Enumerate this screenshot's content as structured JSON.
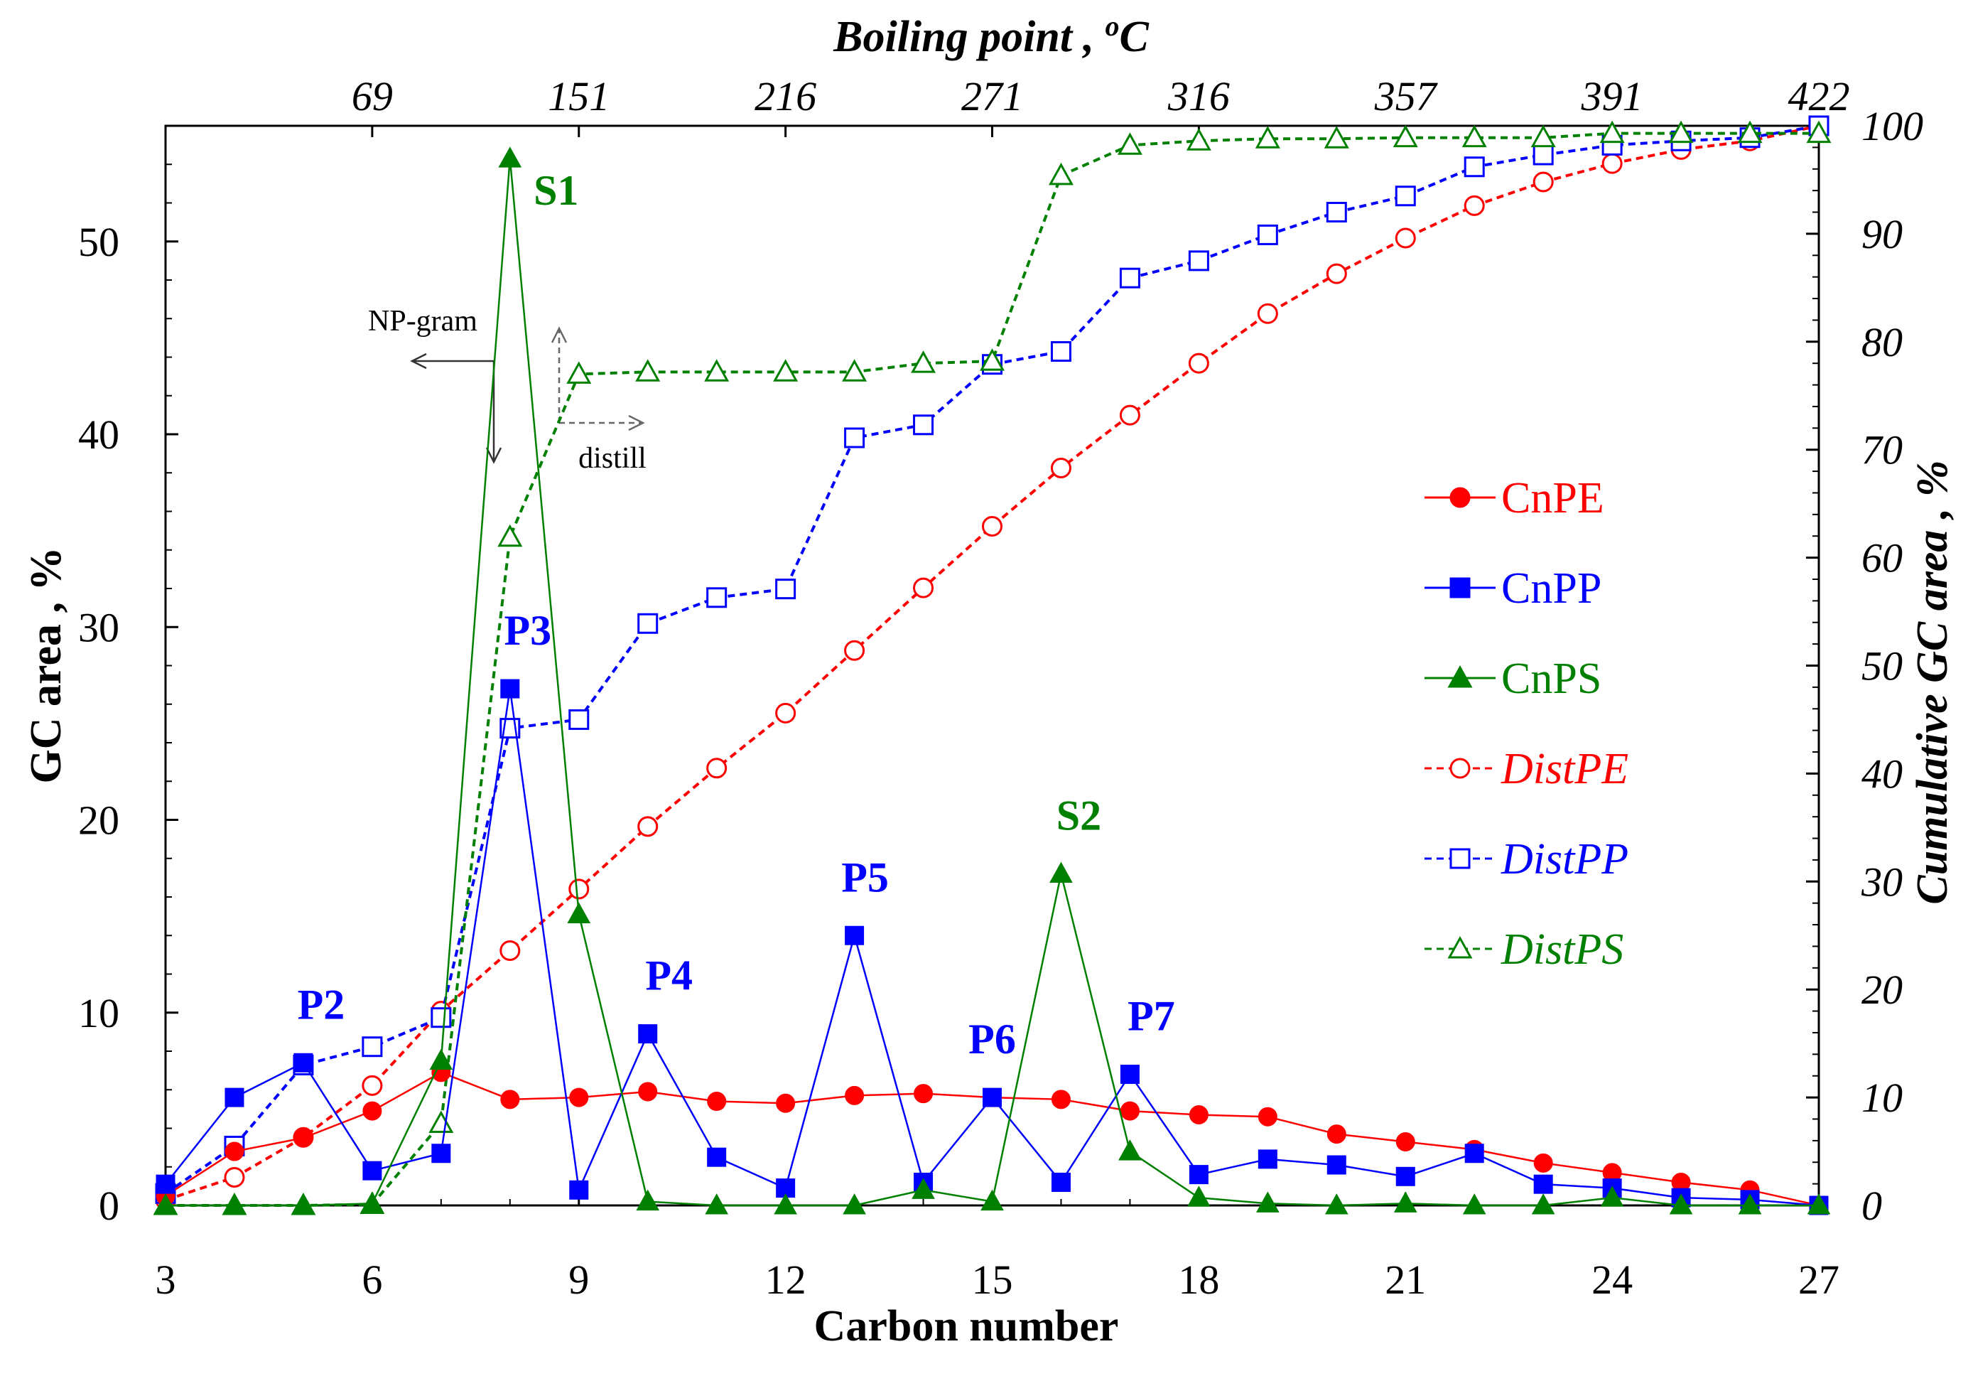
{
  "chart_data": {
    "type": "line",
    "x_axis": {
      "label": "Carbon number",
      "range": [
        3,
        27
      ],
      "ticks": [
        3,
        6,
        9,
        12,
        15,
        18,
        21,
        24,
        27
      ]
    },
    "top_axis": {
      "label": "Boiling point , ",
      "label_sup": "o",
      "label_unit": "C",
      "ticks": [
        {
          "x": 6,
          "label": "69"
        },
        {
          "x": 9,
          "label": "151"
        },
        {
          "x": 12,
          "label": "216"
        },
        {
          "x": 15,
          "label": "271"
        },
        {
          "x": 18,
          "label": "316"
        },
        {
          "x": 21,
          "label": "357"
        },
        {
          "x": 24,
          "label": "391"
        },
        {
          "x": 27,
          "label": "422"
        }
      ]
    },
    "y_left": {
      "label": "GC area , %",
      "range": [
        0,
        56
      ],
      "ticks": [
        0,
        10,
        20,
        30,
        40,
        50
      ]
    },
    "y_right": {
      "label": "Cumulative GC area , %",
      "range": [
        0,
        100
      ],
      "ticks": [
        0,
        10,
        20,
        30,
        40,
        50,
        60,
        70,
        80,
        90,
        100
      ]
    },
    "x": [
      3,
      4,
      5,
      6,
      7,
      8,
      9,
      10,
      11,
      12,
      13,
      14,
      15,
      16,
      17,
      18,
      19,
      20,
      21,
      22,
      23,
      24,
      25,
      26,
      27
    ],
    "series": [
      {
        "name": "CnPE",
        "axis": "left",
        "color": "#ff0000",
        "dash": false,
        "marker": "circle",
        "filled": true,
        "italic": false,
        "values": [
          0.5,
          2.8,
          3.5,
          4.9,
          6.9,
          5.5,
          5.6,
          5.9,
          5.4,
          5.3,
          5.7,
          5.8,
          5.6,
          5.5,
          4.9,
          4.7,
          4.6,
          3.7,
          3.3,
          2.9,
          2.2,
          1.7,
          1.2,
          0.8,
          0.0
        ]
      },
      {
        "name": "CnPP",
        "axis": "left",
        "color": "#0000ff",
        "dash": false,
        "marker": "square",
        "filled": true,
        "italic": false,
        "values": [
          1.1,
          5.6,
          7.4,
          1.8,
          2.7,
          26.8,
          0.8,
          8.9,
          2.5,
          0.9,
          14.0,
          1.2,
          5.6,
          1.2,
          6.8,
          1.6,
          2.4,
          2.1,
          1.5,
          2.7,
          1.1,
          0.9,
          0.4,
          0.3,
          0.0
        ]
      },
      {
        "name": "CnPS",
        "axis": "left",
        "color": "#008000",
        "dash": false,
        "marker": "triangle",
        "filled": true,
        "italic": false,
        "values": [
          0.0,
          0.0,
          0.0,
          0.1,
          7.5,
          54.3,
          15.1,
          0.2,
          0.0,
          0.0,
          0.0,
          0.8,
          0.2,
          17.2,
          2.8,
          0.4,
          0.1,
          0.0,
          0.1,
          0.0,
          0.0,
          0.4,
          0.0,
          0.0,
          0.0
        ]
      },
      {
        "name": "DistPE",
        "axis": "right",
        "color": "#ff0000",
        "dash": true,
        "marker": "circle",
        "filled": false,
        "italic": true,
        "values": [
          0.5,
          2.6,
          6.3,
          11.1,
          18.0,
          23.6,
          29.3,
          35.1,
          40.5,
          45.6,
          51.4,
          57.2,
          62.9,
          68.3,
          73.2,
          78.0,
          82.6,
          86.3,
          89.6,
          92.6,
          94.8,
          96.5,
          97.8,
          98.6,
          100.0
        ]
      },
      {
        "name": "DistPP",
        "axis": "right",
        "color": "#0000ff",
        "dash": true,
        "marker": "square",
        "filled": false,
        "italic": true,
        "values": [
          1.1,
          5.5,
          13.0,
          14.7,
          17.4,
          44.2,
          45.0,
          53.9,
          56.3,
          57.1,
          71.1,
          72.3,
          77.9,
          79.1,
          85.9,
          87.5,
          89.9,
          92.0,
          93.5,
          96.2,
          97.3,
          98.2,
          98.6,
          98.9,
          100.0
        ]
      },
      {
        "name": "DistPS",
        "axis": "right",
        "color": "#008000",
        "dash": true,
        "marker": "triangle",
        "filled": false,
        "italic": true,
        "values": [
          0.0,
          0.0,
          0.0,
          0.1,
          7.6,
          61.9,
          77.0,
          77.2,
          77.2,
          77.2,
          77.2,
          78.0,
          78.2,
          95.4,
          98.2,
          98.6,
          98.8,
          98.8,
          98.9,
          98.9,
          98.9,
          99.3,
          99.3,
          99.3,
          99.3
        ]
      }
    ],
    "peak_labels": [
      {
        "text": "S1",
        "x": 8,
        "y": 54.3,
        "color": "#008000"
      },
      {
        "text": "S2",
        "x": 16,
        "y": 17.2,
        "color": "#008000"
      },
      {
        "text": "P2",
        "x": 5,
        "y": 7.4,
        "color": "#0000ff"
      },
      {
        "text": "P3",
        "x": 8,
        "y": 26.8,
        "color": "#0000ff"
      },
      {
        "text": "P4",
        "x": 10,
        "y": 8.9,
        "color": "#0000ff"
      },
      {
        "text": "P5",
        "x": 13,
        "y": 14.0,
        "color": "#0000ff"
      },
      {
        "text": "P6",
        "x": 15,
        "y": 5.6,
        "color": "#0000ff"
      },
      {
        "text": "P7",
        "x": 17,
        "y": 6.8,
        "color": "#0000ff"
      }
    ],
    "annotations": {
      "left_arrow_label": "NP-gram",
      "right_arrow_label": "distill"
    },
    "legend": {
      "placement": "right-middle",
      "entries": [
        "CnPE",
        "CnPP",
        "CnPS",
        "DistPE",
        "DistPP",
        "DistPS"
      ]
    },
    "grid": false
  }
}
